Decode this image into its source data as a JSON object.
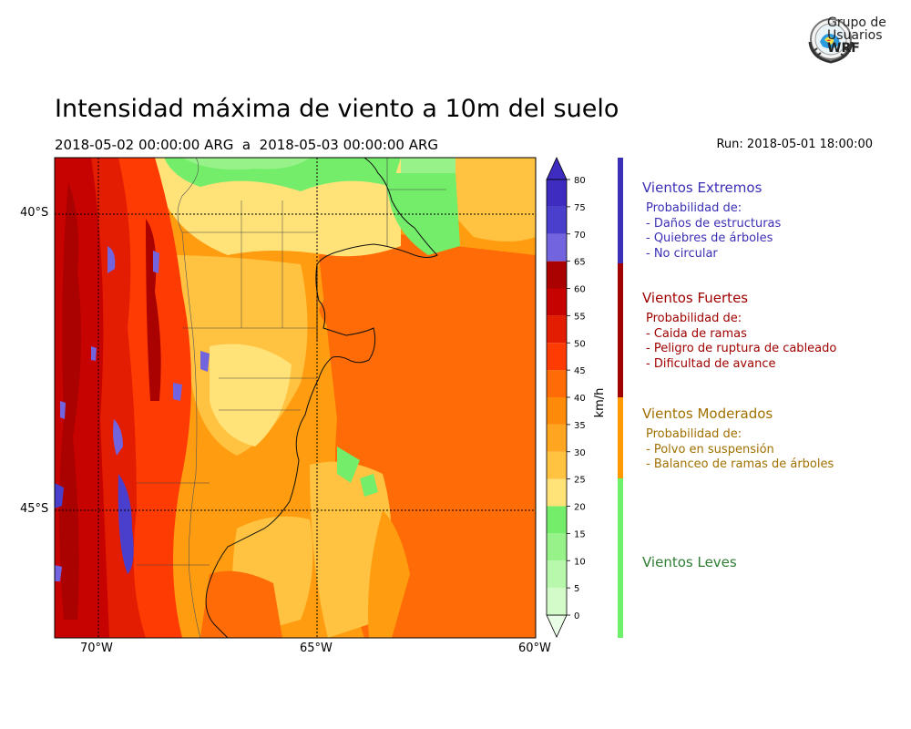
{
  "title": "Intensidad máxima de viento a 10m del suelo",
  "date_range": "2018-05-02 00:00:00 ARG  a  2018-05-03 00:00:00 ARG",
  "run": "Run: 2018-05-01 18:00:00",
  "logo": {
    "line1": "Grupo de",
    "line2": "Usuarios",
    "line3": "WRF"
  },
  "map": {
    "lat_labels": [
      "40°S",
      "45°S"
    ],
    "lon_labels": [
      "70°W",
      "65°W",
      "60°W"
    ],
    "lon_range": [
      -71,
      -60
    ],
    "lat_range": [
      -47.1,
      -39
    ]
  },
  "colorbar": {
    "unit": "km/h",
    "ticks": [
      "0",
      "5",
      "10",
      "15",
      "20",
      "25",
      "30",
      "35",
      "40",
      "45",
      "50",
      "55",
      "60",
      "65",
      "70",
      "75",
      "80"
    ],
    "colors": [
      "#eafde6",
      "#d2fbc9",
      "#b8f8ad",
      "#98f28a",
      "#74ee6a",
      "#ffe278",
      "#ffc341",
      "#ffa520",
      "#fd8a08",
      "#ff6b06",
      "#ff3b04",
      "#e21d02",
      "#c70301",
      "#a90200",
      "#7263df",
      "#4a3ecc",
      "#3d2cbf"
    ]
  },
  "legend": [
    {
      "title": "Vientos Extremos",
      "color": "#3b2fb5",
      "heading": "Probabilidad de:",
      "items": [
        "- Daños de estructuras",
        "- Quiebres de árboles",
        "- No circular"
      ]
    },
    {
      "title": "Vientos Fuertes",
      "color": "#a00000",
      "heading": "Probabilidad de:",
      "items": [
        "- Caida de ramas",
        "- Peligro de ruptura de cableado",
        "- Dificultad de avance"
      ]
    },
    {
      "title": "Vientos Moderados",
      "color": "#a07000",
      "heading": "Probabilidad de:",
      "items": [
        "- Polvo en suspensión",
        "- Balanceo de ramas de árboles"
      ]
    },
    {
      "title": "Vientos Leves",
      "color": "#2e7d32",
      "heading": "",
      "items": []
    }
  ],
  "legend_bar_colors": [
    "#3b2fb5",
    "#a00000",
    "#ff9900",
    "#6ef06a"
  ]
}
